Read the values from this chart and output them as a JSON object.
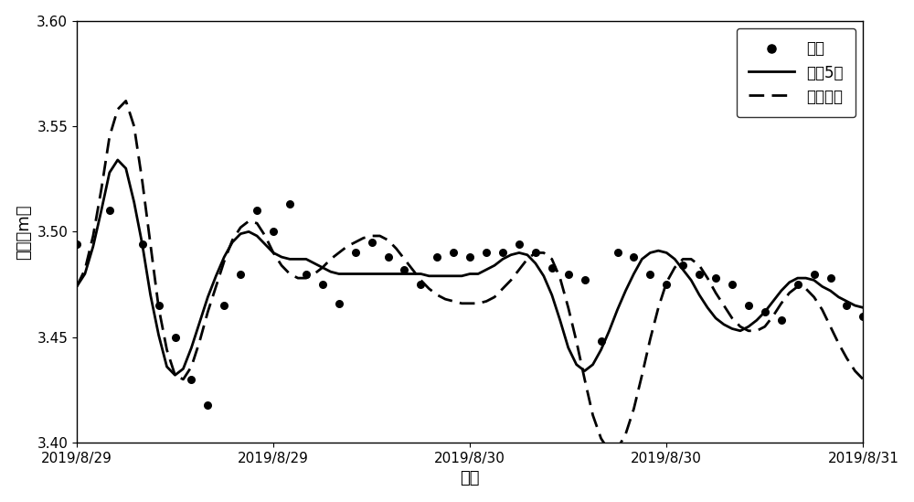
{
  "title": "",
  "xlabel": "时间",
  "ylabel": "水位（m）",
  "ylim": [
    3.4,
    3.6
  ],
  "yticks": [
    3.4,
    3.45,
    3.5,
    3.55,
    3.6
  ],
  "legend_labels": [
    "实测",
    "式（5）",
    "传统公式"
  ],
  "background_color": "#ffffff",
  "line_color": "#000000",
  "measured_color": "#000000",
  "solid_x": [
    0.0,
    0.5,
    1.0,
    1.5,
    2.0,
    2.5,
    3.0,
    3.5,
    4.0,
    4.5,
    5.0,
    5.5,
    6.0,
    6.5,
    7.0,
    7.5,
    8.0,
    8.5,
    9.0,
    9.5,
    10.0,
    10.5,
    11.0,
    11.5,
    12.0,
    12.5,
    13.0,
    13.5,
    14.0,
    14.5,
    15.0,
    15.5,
    16.0,
    16.5,
    17.0,
    17.5,
    18.0,
    18.5,
    19.0,
    19.5,
    20.0,
    20.5,
    21.0,
    21.5,
    22.0,
    22.5,
    23.0,
    23.5,
    24.0,
    24.5,
    25.0,
    25.5,
    26.0,
    26.5,
    27.0,
    27.5,
    28.0,
    28.5,
    29.0,
    29.5,
    30.0,
    30.5,
    31.0,
    31.5,
    32.0,
    32.5,
    33.0,
    33.5,
    34.0,
    34.5,
    35.0,
    35.5,
    36.0,
    36.5,
    37.0,
    37.5,
    38.0,
    38.5,
    39.0,
    39.5,
    40.0,
    40.5,
    41.0,
    41.5,
    42.0,
    42.5,
    43.0,
    43.5,
    44.0,
    44.5,
    45.0,
    45.5,
    46.0,
    46.5,
    47.0,
    47.5,
    48.0
  ],
  "solid_y": [
    3.474,
    3.48,
    3.493,
    3.51,
    3.528,
    3.534,
    3.53,
    3.514,
    3.494,
    3.47,
    3.451,
    3.436,
    3.432,
    3.435,
    3.445,
    3.457,
    3.469,
    3.479,
    3.488,
    3.495,
    3.499,
    3.5,
    3.498,
    3.494,
    3.49,
    3.488,
    3.487,
    3.487,
    3.487,
    3.485,
    3.483,
    3.481,
    3.48,
    3.48,
    3.48,
    3.48,
    3.48,
    3.48,
    3.48,
    3.48,
    3.48,
    3.48,
    3.48,
    3.479,
    3.479,
    3.479,
    3.479,
    3.479,
    3.48,
    3.48,
    3.482,
    3.484,
    3.487,
    3.489,
    3.49,
    3.489,
    3.485,
    3.479,
    3.47,
    3.458,
    3.445,
    3.437,
    3.434,
    3.437,
    3.444,
    3.453,
    3.463,
    3.472,
    3.48,
    3.487,
    3.49,
    3.491,
    3.49,
    3.487,
    3.482,
    3.477,
    3.47,
    3.464,
    3.459,
    3.456,
    3.454,
    3.453,
    3.455,
    3.458,
    3.462,
    3.467,
    3.472,
    3.476,
    3.478,
    3.478,
    3.477,
    3.474,
    3.472,
    3.469,
    3.467,
    3.465,
    3.464
  ],
  "dashed_x": [
    0.0,
    0.5,
    1.0,
    1.5,
    2.0,
    2.5,
    3.0,
    3.5,
    4.0,
    4.5,
    5.0,
    5.5,
    6.0,
    6.5,
    7.0,
    7.5,
    8.0,
    8.5,
    9.0,
    9.5,
    10.0,
    10.5,
    11.0,
    11.5,
    12.0,
    12.5,
    13.0,
    13.5,
    14.0,
    14.5,
    15.0,
    15.5,
    16.0,
    16.5,
    17.0,
    17.5,
    18.0,
    18.5,
    19.0,
    19.5,
    20.0,
    20.5,
    21.0,
    21.5,
    22.0,
    22.5,
    23.0,
    23.5,
    24.0,
    24.5,
    25.0,
    25.5,
    26.0,
    26.5,
    27.0,
    27.5,
    28.0,
    28.5,
    29.0,
    29.5,
    30.0,
    30.5,
    31.0,
    31.5,
    32.0,
    32.5,
    33.0,
    33.5,
    34.0,
    34.5,
    35.0,
    35.5,
    36.0,
    36.5,
    37.0,
    37.5,
    38.0,
    38.5,
    39.0,
    39.5,
    40.0,
    40.5,
    41.0,
    41.5,
    42.0,
    42.5,
    43.0,
    43.5,
    44.0,
    44.5,
    45.0,
    45.5,
    46.0,
    46.5,
    47.0,
    47.5,
    48.0
  ],
  "dashed_y": [
    3.474,
    3.482,
    3.498,
    3.52,
    3.545,
    3.558,
    3.562,
    3.55,
    3.524,
    3.494,
    3.464,
    3.444,
    3.432,
    3.43,
    3.436,
    3.448,
    3.462,
    3.474,
    3.486,
    3.496,
    3.502,
    3.505,
    3.504,
    3.498,
    3.49,
    3.484,
    3.48,
    3.478,
    3.478,
    3.48,
    3.483,
    3.487,
    3.49,
    3.493,
    3.495,
    3.497,
    3.498,
    3.498,
    3.496,
    3.492,
    3.487,
    3.482,
    3.477,
    3.473,
    3.47,
    3.468,
    3.467,
    3.466,
    3.466,
    3.466,
    3.467,
    3.469,
    3.473,
    3.477,
    3.482,
    3.487,
    3.49,
    3.49,
    3.487,
    3.478,
    3.464,
    3.448,
    3.43,
    3.413,
    3.402,
    3.396,
    3.397,
    3.404,
    3.416,
    3.432,
    3.449,
    3.464,
    3.476,
    3.483,
    3.487,
    3.487,
    3.484,
    3.478,
    3.471,
    3.465,
    3.459,
    3.455,
    3.453,
    3.453,
    3.455,
    3.46,
    3.466,
    3.471,
    3.474,
    3.473,
    3.469,
    3.463,
    3.455,
    3.447,
    3.44,
    3.434,
    3.43
  ],
  "measured_t": [
    0,
    2,
    4,
    5,
    6,
    7,
    8,
    9,
    10,
    11,
    12,
    13,
    14,
    15,
    16,
    17,
    18,
    19,
    20,
    21,
    22,
    23,
    24,
    25,
    26,
    27,
    28,
    29,
    30,
    31,
    32,
    33,
    34,
    35,
    36,
    37,
    38,
    39,
    40,
    41,
    42,
    43,
    44,
    45,
    46,
    47,
    48
  ],
  "measured_v": [
    3.494,
    3.51,
    3.494,
    3.465,
    3.45,
    3.43,
    3.418,
    3.465,
    3.48,
    3.51,
    3.5,
    3.513,
    3.48,
    3.475,
    3.466,
    3.49,
    3.495,
    3.488,
    3.482,
    3.475,
    3.488,
    3.49,
    3.488,
    3.49,
    3.49,
    3.494,
    3.49,
    3.483,
    3.48,
    3.477,
    3.448,
    3.49,
    3.488,
    3.48,
    3.475,
    3.484,
    3.48,
    3.478,
    3.475,
    3.465,
    3.462,
    3.458,
    3.475,
    3.48,
    3.478,
    3.465,
    3.46
  ],
  "xtick_hours": [
    0,
    12,
    24,
    36,
    48
  ],
  "xtick_labels": [
    "2019/8/29",
    "2019/8/29",
    "2019/8/30",
    "2019/8/30",
    "2019/8/31"
  ]
}
